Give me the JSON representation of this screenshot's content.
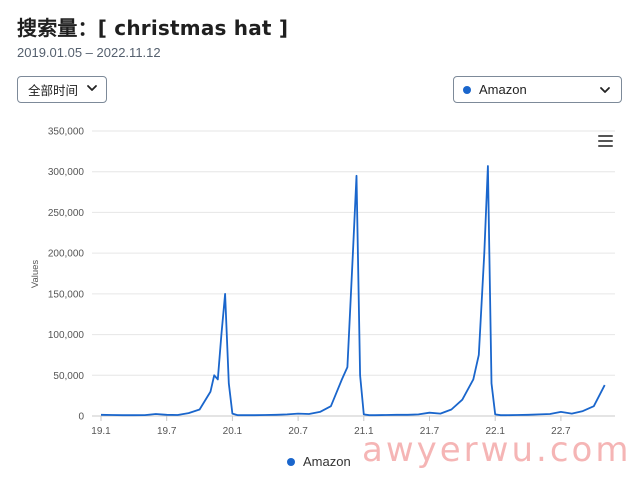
{
  "header": {
    "title": "搜索量：[ christmas hat ]",
    "date_range": "2019.01.05 – 2022.11.12"
  },
  "controls": {
    "time_filter": "全部时间",
    "platform": "Amazon"
  },
  "colors": {
    "series": "#1a66cc",
    "grid": "#e6e6e6",
    "watermark": "#ec7878"
  },
  "watermark": "awyerwu.com",
  "chart_data": {
    "type": "line",
    "ylabel": "Values",
    "ylim": [
      0,
      350000
    ],
    "y_ticks": [
      0,
      50000,
      100000,
      150000,
      200000,
      250000,
      300000,
      350000
    ],
    "y_tick_labels": [
      "0",
      "50,000",
      "100,000",
      "150,000",
      "200,000",
      "250,000",
      "300,000",
      "350,000"
    ],
    "x_tick_labels": [
      "19.1",
      "19.7",
      "20.1",
      "20.7",
      "21.1",
      "21.7",
      "22.1",
      "22.7"
    ],
    "grid": true,
    "legend_position": "bottom",
    "series": [
      {
        "name": "Amazon",
        "x": [
          "2019-01",
          "2019-02",
          "2019-03",
          "2019-04",
          "2019-05",
          "2019-06",
          "2019-07",
          "2019-08",
          "2019-09",
          "2019-10",
          "2019-11",
          "2019-11",
          "2019-11",
          "2019-12",
          "2019-12",
          "2019-12",
          "2020-01",
          "2020-01",
          "2020-02",
          "2020-03",
          "2020-04",
          "2020-05",
          "2020-06",
          "2020-07",
          "2020-08",
          "2020-09",
          "2020-10",
          "2020-11",
          "2020-11",
          "2020-12",
          "2020-12",
          "2020-12",
          "2021-01",
          "2021-01",
          "2021-02",
          "2021-03",
          "2021-04",
          "2021-05",
          "2021-06",
          "2021-07",
          "2021-08",
          "2021-09",
          "2021-10",
          "2021-11",
          "2021-11",
          "2021-12",
          "2021-12",
          "2021-12",
          "2022-01",
          "2022-01",
          "2022-02",
          "2022-03",
          "2022-04",
          "2022-05",
          "2022-06",
          "2022-07",
          "2022-08",
          "2022-09",
          "2022-10",
          "2022-11"
        ],
        "values": [
          1500,
          1200,
          1000,
          1000,
          1100,
          2500,
          1500,
          1200,
          3500,
          8000,
          30000,
          50000,
          45000,
          100000,
          150000,
          40000,
          3000,
          1000,
          1000,
          1000,
          1200,
          1500,
          2000,
          3000,
          2500,
          5000,
          12000,
          45000,
          60000,
          200000,
          295000,
          50000,
          2000,
          1000,
          1000,
          1200,
          1500,
          1500,
          2000,
          4000,
          3000,
          8000,
          20000,
          45000,
          75000,
          200000,
          307000,
          40000,
          2000,
          1000,
          1000,
          1200,
          1500,
          2000,
          2500,
          5000,
          3000,
          6000,
          12000,
          38000
        ]
      }
    ]
  }
}
